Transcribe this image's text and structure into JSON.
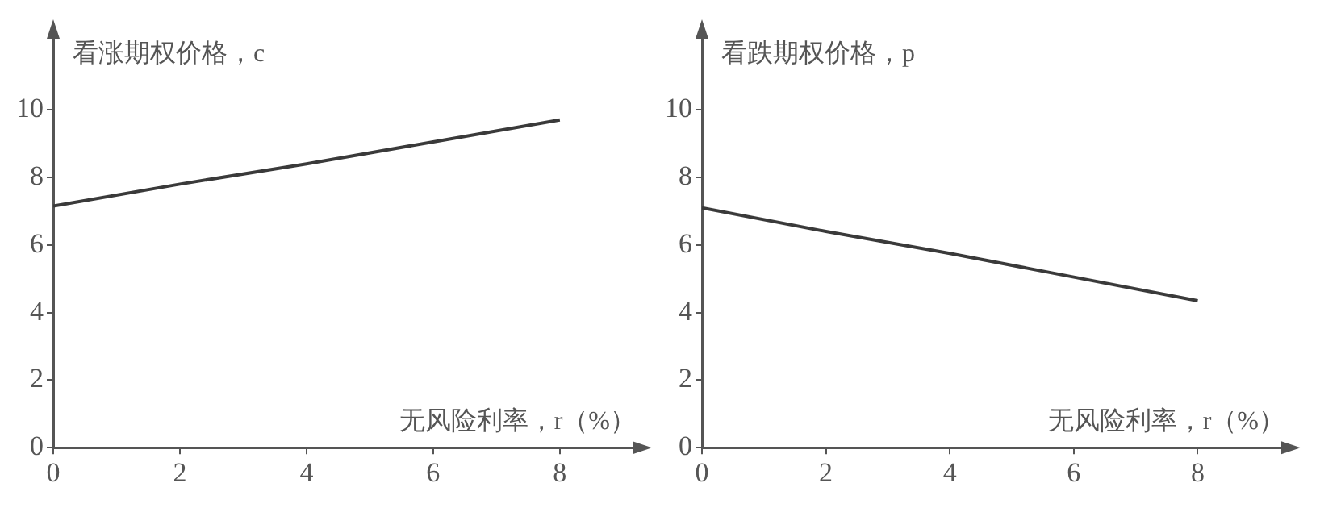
{
  "chart_data": [
    {
      "type": "line",
      "ylabel": "看涨期权价格，c",
      "xlabel": "无风险利率，r（%）",
      "x": [
        0,
        2,
        4,
        6,
        8
      ],
      "series": [
        {
          "color": "#3a3a3a",
          "values": [
            7.15,
            7.8,
            8.4,
            9.05,
            9.7
          ]
        }
      ],
      "xlim": [
        0,
        9.2
      ],
      "xticks": [
        0,
        2,
        4,
        6,
        8
      ],
      "ylim": [
        0,
        12.2
      ],
      "yticks": [
        0,
        2,
        4,
        6,
        8,
        10
      ],
      "grid": false,
      "marker": "none"
    },
    {
      "type": "line",
      "ylabel": "看跌期权价格，p",
      "xlabel": "无风险利率，r（%）",
      "x": [
        0,
        2,
        4,
        6,
        8
      ],
      "series": [
        {
          "color": "#3a3a3a",
          "values": [
            7.1,
            6.4,
            5.75,
            5.05,
            4.35
          ]
        }
      ],
      "xlim": [
        0,
        9.4
      ],
      "xticks": [
        0,
        2,
        4,
        6,
        8
      ],
      "ylim": [
        0,
        12.2
      ],
      "yticks": [
        0,
        2,
        4,
        6,
        8,
        10
      ],
      "grid": false,
      "marker": "none"
    }
  ]
}
